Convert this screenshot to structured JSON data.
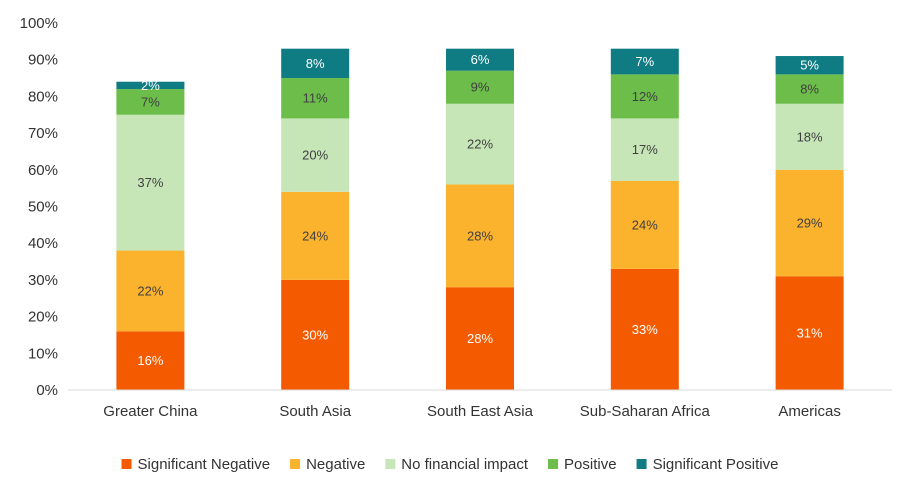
{
  "chart_data": {
    "type": "bar",
    "stacked": true,
    "percent_stacked": true,
    "categories": [
      "Greater China",
      "South Asia",
      "South East Asia",
      "Sub-Saharan Africa",
      "Americas"
    ],
    "series": [
      {
        "name": "Significant Negative",
        "color": "#f45b00",
        "values": [
          16,
          30,
          28,
          33,
          31
        ],
        "labels": [
          "16%",
          "30%",
          "28%",
          "33%",
          "31%"
        ],
        "label_color": "#ffffff"
      },
      {
        "name": "Negative",
        "color": "#fbb32e",
        "values": [
          22,
          24,
          28,
          24,
          29
        ],
        "labels": [
          "22%",
          "24%",
          "28%",
          "24%",
          "29%"
        ],
        "label_color": "#404040"
      },
      {
        "name": "No financial impact",
        "color": "#c6e6b8",
        "values": [
          37,
          20,
          22,
          17,
          18
        ],
        "labels": [
          "37%",
          "20%",
          "22%",
          "17%",
          "18%"
        ],
        "label_color": "#404040"
      },
      {
        "name": "Positive",
        "color": "#6cbd4a",
        "values": [
          7,
          11,
          9,
          12,
          8
        ],
        "labels": [
          "7%",
          "11%",
          "9%",
          "12%",
          "8%"
        ],
        "label_color": "#404040"
      },
      {
        "name": "Significant Positive",
        "color": "#0f7c83",
        "values": [
          2,
          8,
          6,
          7,
          5
        ],
        "labels": [
          "2%",
          "8%",
          "6%",
          "7%",
          "5%"
        ],
        "label_color": "#ffffff"
      }
    ],
    "y_ticks": [
      "0%",
      "10%",
      "20%",
      "30%",
      "40%",
      "50%",
      "60%",
      "70%",
      "80%",
      "90%",
      "100%"
    ],
    "ylim": [
      0,
      100
    ],
    "legend_position": "bottom",
    "grid": false
  }
}
